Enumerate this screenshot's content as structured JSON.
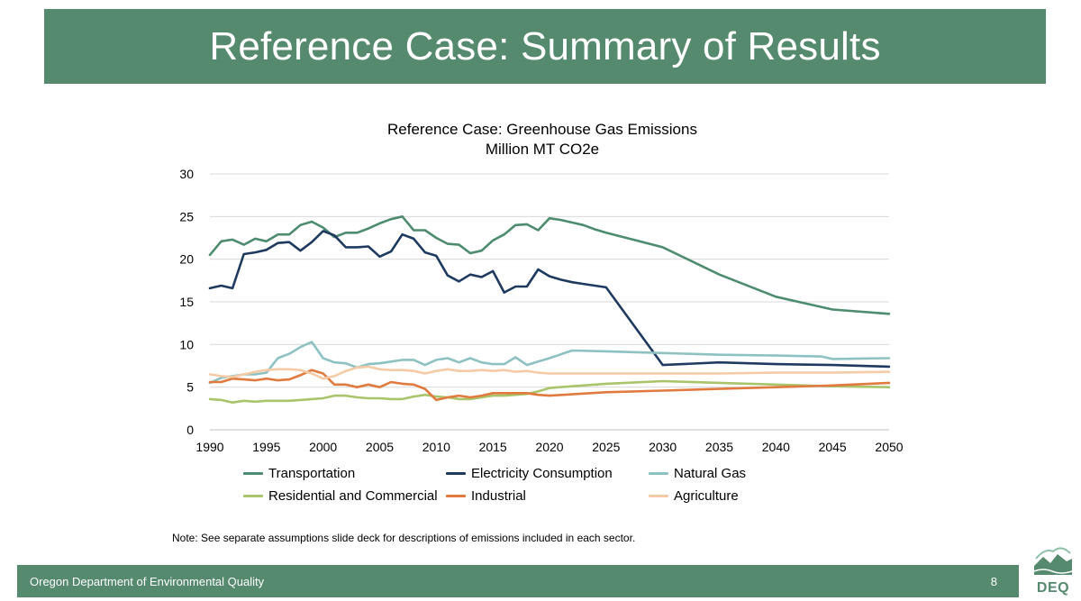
{
  "slide": {
    "title": "Reference Case: Summary of Results",
    "note": "Note: See separate assumptions slide deck for descriptions of emissions included in each sector.",
    "footer_org": "Oregon Department of Environmental Quality",
    "page_number": "8",
    "logo_text": "DEQ"
  },
  "colors": {
    "brand": "#558a6e"
  },
  "chart_data": {
    "type": "line",
    "title": "Reference Case: Greenhouse Gas Emissions",
    "subtitle": "Million MT CO2e",
    "xlabel": "",
    "ylabel": "",
    "xlim": [
      1990,
      2050
    ],
    "ylim": [
      0,
      30
    ],
    "x_ticks": [
      1990,
      1995,
      2000,
      2005,
      2010,
      2015,
      2020,
      2025,
      2030,
      2035,
      2040,
      2045,
      2050
    ],
    "y_ticks": [
      0,
      5,
      10,
      15,
      20,
      25,
      30
    ],
    "grid": true,
    "legend_position": "bottom",
    "series": [
      {
        "name": "Transportation",
        "color": "#4d8c6f",
        "points": [
          [
            1990,
            20.5
          ],
          [
            1991,
            22.1
          ],
          [
            1992,
            22.3
          ],
          [
            1993,
            21.7
          ],
          [
            1994,
            22.4
          ],
          [
            1995,
            22.1
          ],
          [
            1996,
            22.9
          ],
          [
            1997,
            22.9
          ],
          [
            1998,
            24.0
          ],
          [
            1999,
            24.4
          ],
          [
            2000,
            23.7
          ],
          [
            2001,
            22.6
          ],
          [
            2002,
            23.1
          ],
          [
            2003,
            23.1
          ],
          [
            2004,
            23.6
          ],
          [
            2005,
            24.2
          ],
          [
            2006,
            24.7
          ],
          [
            2007,
            25.0
          ],
          [
            2008,
            23.4
          ],
          [
            2009,
            23.4
          ],
          [
            2010,
            22.5
          ],
          [
            2011,
            21.8
          ],
          [
            2012,
            21.7
          ],
          [
            2013,
            20.7
          ],
          [
            2014,
            21.0
          ],
          [
            2015,
            22.2
          ],
          [
            2016,
            22.9
          ],
          [
            2017,
            24.0
          ],
          [
            2018,
            24.1
          ],
          [
            2019,
            23.4
          ],
          [
            2020,
            24.8
          ],
          [
            2021,
            24.6
          ],
          [
            2022,
            24.3
          ],
          [
            2023,
            24.0
          ],
          [
            2024,
            23.5
          ],
          [
            2025,
            23.1
          ],
          [
            2030,
            21.4
          ],
          [
            2035,
            18.2
          ],
          [
            2040,
            15.6
          ],
          [
            2045,
            14.1
          ],
          [
            2050,
            13.6
          ]
        ]
      },
      {
        "name": "Electricity Consumption",
        "color": "#1f3a5f",
        "points": [
          [
            1990,
            16.6
          ],
          [
            1991,
            16.9
          ],
          [
            1992,
            16.6
          ],
          [
            1993,
            20.6
          ],
          [
            1994,
            20.8
          ],
          [
            1995,
            21.1
          ],
          [
            1996,
            21.9
          ],
          [
            1997,
            22.0
          ],
          [
            1998,
            21.0
          ],
          [
            1999,
            22.0
          ],
          [
            2000,
            23.3
          ],
          [
            2001,
            22.8
          ],
          [
            2002,
            21.4
          ],
          [
            2003,
            21.4
          ],
          [
            2004,
            21.5
          ],
          [
            2005,
            20.3
          ],
          [
            2006,
            20.9
          ],
          [
            2007,
            22.9
          ],
          [
            2008,
            22.4
          ],
          [
            2009,
            20.8
          ],
          [
            2010,
            20.4
          ],
          [
            2011,
            18.1
          ],
          [
            2012,
            17.4
          ],
          [
            2013,
            18.2
          ],
          [
            2014,
            17.9
          ],
          [
            2015,
            18.6
          ],
          [
            2016,
            16.1
          ],
          [
            2017,
            16.8
          ],
          [
            2018,
            16.8
          ],
          [
            2019,
            18.8
          ],
          [
            2020,
            18.0
          ],
          [
            2021,
            17.6
          ],
          [
            2022,
            17.3
          ],
          [
            2023,
            17.1
          ],
          [
            2024,
            16.9
          ],
          [
            2025,
            16.7
          ],
          [
            2030,
            7.6
          ],
          [
            2035,
            7.9
          ],
          [
            2040,
            7.7
          ],
          [
            2045,
            7.6
          ],
          [
            2050,
            7.4
          ]
        ]
      },
      {
        "name": "Natural Gas",
        "color": "#8ec1c1",
        "points": [
          [
            1990,
            5.5
          ],
          [
            1991,
            6.1
          ],
          [
            1992,
            6.3
          ],
          [
            1993,
            6.5
          ],
          [
            1994,
            6.5
          ],
          [
            1995,
            6.7
          ],
          [
            1996,
            8.4
          ],
          [
            1997,
            8.9
          ],
          [
            1998,
            9.7
          ],
          [
            1999,
            10.3
          ],
          [
            2000,
            8.4
          ],
          [
            2001,
            7.9
          ],
          [
            2002,
            7.8
          ],
          [
            2003,
            7.3
          ],
          [
            2004,
            7.7
          ],
          [
            2005,
            7.8
          ],
          [
            2006,
            8.0
          ],
          [
            2007,
            8.2
          ],
          [
            2008,
            8.2
          ],
          [
            2009,
            7.6
          ],
          [
            2010,
            8.2
          ],
          [
            2011,
            8.4
          ],
          [
            2012,
            7.9
          ],
          [
            2013,
            8.4
          ],
          [
            2014,
            7.9
          ],
          [
            2015,
            7.7
          ],
          [
            2016,
            7.7
          ],
          [
            2017,
            8.5
          ],
          [
            2018,
            7.6
          ],
          [
            2019,
            8.0
          ],
          [
            2020,
            8.4
          ],
          [
            2022,
            9.3
          ],
          [
            2025,
            9.2
          ],
          [
            2030,
            9.0
          ],
          [
            2035,
            8.8
          ],
          [
            2040,
            8.7
          ],
          [
            2044,
            8.6
          ],
          [
            2045,
            8.3
          ],
          [
            2050,
            8.4
          ]
        ]
      },
      {
        "name": "Residential and Commercial",
        "color": "#a9c46a",
        "points": [
          [
            1990,
            3.6
          ],
          [
            1991,
            3.5
          ],
          [
            1992,
            3.2
          ],
          [
            1993,
            3.4
          ],
          [
            1994,
            3.3
          ],
          [
            1995,
            3.4
          ],
          [
            1996,
            3.4
          ],
          [
            1997,
            3.4
          ],
          [
            1998,
            3.5
          ],
          [
            1999,
            3.6
          ],
          [
            2000,
            3.7
          ],
          [
            2001,
            4.0
          ],
          [
            2002,
            4.0
          ],
          [
            2003,
            3.8
          ],
          [
            2004,
            3.7
          ],
          [
            2005,
            3.7
          ],
          [
            2006,
            3.6
          ],
          [
            2007,
            3.6
          ],
          [
            2008,
            3.9
          ],
          [
            2009,
            4.1
          ],
          [
            2010,
            3.9
          ],
          [
            2011,
            3.8
          ],
          [
            2012,
            3.6
          ],
          [
            2013,
            3.6
          ],
          [
            2014,
            3.8
          ],
          [
            2015,
            4.0
          ],
          [
            2016,
            4.0
          ],
          [
            2017,
            4.1
          ],
          [
            2018,
            4.2
          ],
          [
            2019,
            4.5
          ],
          [
            2020,
            4.9
          ],
          [
            2022,
            5.1
          ],
          [
            2025,
            5.4
          ],
          [
            2030,
            5.7
          ],
          [
            2035,
            5.5
          ],
          [
            2040,
            5.3
          ],
          [
            2045,
            5.1
          ],
          [
            2050,
            5.0
          ]
        ]
      },
      {
        "name": "Industrial",
        "color": "#e07a3e",
        "points": [
          [
            1990,
            5.6
          ],
          [
            1991,
            5.6
          ],
          [
            1992,
            6.0
          ],
          [
            1993,
            5.9
          ],
          [
            1994,
            5.8
          ],
          [
            1995,
            6.0
          ],
          [
            1996,
            5.8
          ],
          [
            1997,
            5.9
          ],
          [
            1998,
            6.4
          ],
          [
            1999,
            7.0
          ],
          [
            2000,
            6.6
          ],
          [
            2001,
            5.3
          ],
          [
            2002,
            5.3
          ],
          [
            2003,
            5.0
          ],
          [
            2004,
            5.3
          ],
          [
            2005,
            5.0
          ],
          [
            2006,
            5.6
          ],
          [
            2007,
            5.4
          ],
          [
            2008,
            5.3
          ],
          [
            2009,
            4.8
          ],
          [
            2010,
            3.5
          ],
          [
            2011,
            3.8
          ],
          [
            2012,
            4.0
          ],
          [
            2013,
            3.8
          ],
          [
            2014,
            4.0
          ],
          [
            2015,
            4.3
          ],
          [
            2016,
            4.3
          ],
          [
            2017,
            4.3
          ],
          [
            2018,
            4.3
          ],
          [
            2019,
            4.1
          ],
          [
            2020,
            4.0
          ],
          [
            2025,
            4.4
          ],
          [
            2030,
            4.6
          ],
          [
            2035,
            4.8
          ],
          [
            2040,
            5.0
          ],
          [
            2045,
            5.2
          ],
          [
            2050,
            5.5
          ]
        ]
      },
      {
        "name": "Agriculture",
        "color": "#f5cba7",
        "points": [
          [
            1990,
            6.5
          ],
          [
            1991,
            6.3
          ],
          [
            1992,
            6.2
          ],
          [
            1993,
            6.5
          ],
          [
            1994,
            6.8
          ],
          [
            1995,
            7.0
          ],
          [
            1996,
            7.1
          ],
          [
            1997,
            7.1
          ],
          [
            1998,
            7.0
          ],
          [
            1999,
            6.6
          ],
          [
            2000,
            6.0
          ],
          [
            2001,
            6.3
          ],
          [
            2002,
            6.9
          ],
          [
            2003,
            7.3
          ],
          [
            2004,
            7.4
          ],
          [
            2005,
            7.1
          ],
          [
            2006,
            7.0
          ],
          [
            2007,
            7.0
          ],
          [
            2008,
            6.9
          ],
          [
            2009,
            6.6
          ],
          [
            2010,
            6.9
          ],
          [
            2011,
            7.1
          ],
          [
            2012,
            6.9
          ],
          [
            2013,
            6.9
          ],
          [
            2014,
            7.0
          ],
          [
            2015,
            6.9
          ],
          [
            2016,
            7.0
          ],
          [
            2017,
            6.8
          ],
          [
            2018,
            6.9
          ],
          [
            2019,
            6.7
          ],
          [
            2020,
            6.6
          ],
          [
            2025,
            6.6
          ],
          [
            2030,
            6.6
          ],
          [
            2035,
            6.6
          ],
          [
            2040,
            6.7
          ],
          [
            2045,
            6.7
          ],
          [
            2050,
            6.8
          ]
        ]
      }
    ]
  }
}
